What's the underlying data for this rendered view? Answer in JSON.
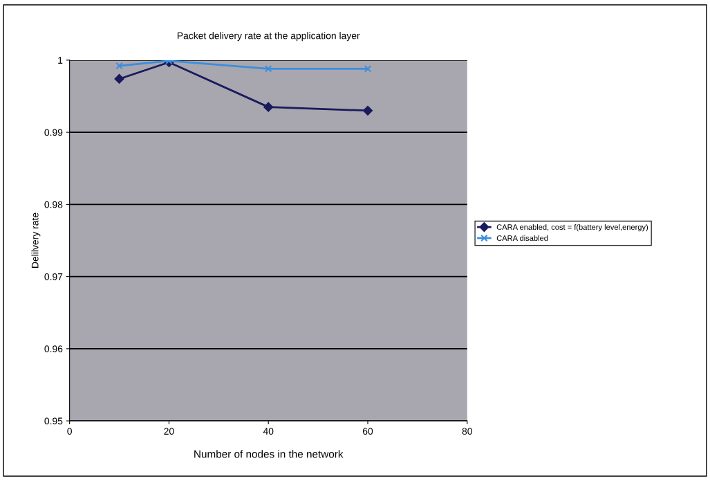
{
  "chart_data": {
    "type": "line",
    "title": "Packet delivery rate at the application layer",
    "xlabel": "Number of nodes in the network",
    "ylabel": "Delilvery rate",
    "x": [
      10,
      20,
      40,
      60
    ],
    "series": [
      {
        "name": "CARA enabled, cost = f(battery level,energy)",
        "color": "#1a1a5e",
        "values": [
          0.9974,
          0.9997,
          0.9935,
          0.993
        ],
        "marker": "diamond"
      },
      {
        "name": "CARA disabled",
        "color": "#3b8ede",
        "values": [
          0.9992,
          0.9999,
          0.9988,
          0.9988
        ],
        "marker": "cross"
      }
    ],
    "xlim": [
      0,
      80
    ],
    "xticks": [
      0,
      20,
      40,
      60,
      80
    ],
    "ylim": [
      0.95,
      1
    ],
    "yticks": [
      0.95,
      0.96,
      0.97,
      0.98,
      0.99,
      {
        "value": 1,
        "label": "1"
      }
    ],
    "grid": "y",
    "legend": "right",
    "line_style": "solid"
  }
}
